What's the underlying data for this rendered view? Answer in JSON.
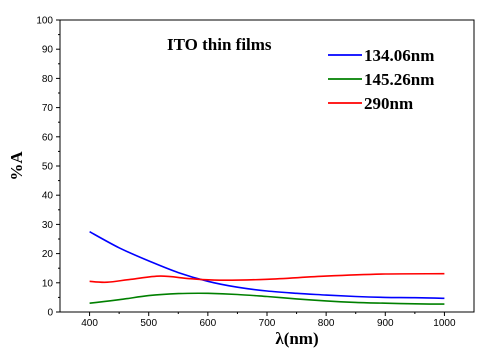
{
  "chart_data": {
    "type": "line",
    "title": "ITO thin films",
    "xlabel": "λ(nm)",
    "ylabel": "%A",
    "xlim": [
      350,
      1050
    ],
    "ylim": [
      0,
      100
    ],
    "xticks": [
      400,
      500,
      600,
      700,
      800,
      900,
      1000
    ],
    "yticks": [
      0,
      10,
      20,
      30,
      40,
      50,
      60,
      70,
      80,
      90,
      100
    ],
    "grid": false,
    "legend_position": "top-right",
    "series": [
      {
        "name": "134.06nm",
        "color": "#0000ff",
        "x": [
          400,
          450,
          500,
          550,
          600,
          650,
          700,
          750,
          800,
          850,
          900,
          950,
          1000
        ],
        "y": [
          27.5,
          22.0,
          17.5,
          13.5,
          10.5,
          8.5,
          7.2,
          6.4,
          5.8,
          5.3,
          5.0,
          4.9,
          4.7
        ]
      },
      {
        "name": "145.26nm",
        "color": "#008000",
        "x": [
          400,
          450,
          500,
          550,
          600,
          650,
          700,
          750,
          800,
          850,
          900,
          950,
          1000
        ],
        "y": [
          3.0,
          4.2,
          5.6,
          6.3,
          6.4,
          6.0,
          5.3,
          4.5,
          3.8,
          3.3,
          3.0,
          2.8,
          2.7
        ]
      },
      {
        "name": "290nm",
        "color": "#ff0000",
        "x": [
          400,
          430,
          470,
          520,
          570,
          620,
          700,
          800,
          900,
          1000
        ],
        "y": [
          10.5,
          10.2,
          11.2,
          12.3,
          11.4,
          10.9,
          11.2,
          12.3,
          13.0,
          13.1
        ]
      }
    ]
  }
}
